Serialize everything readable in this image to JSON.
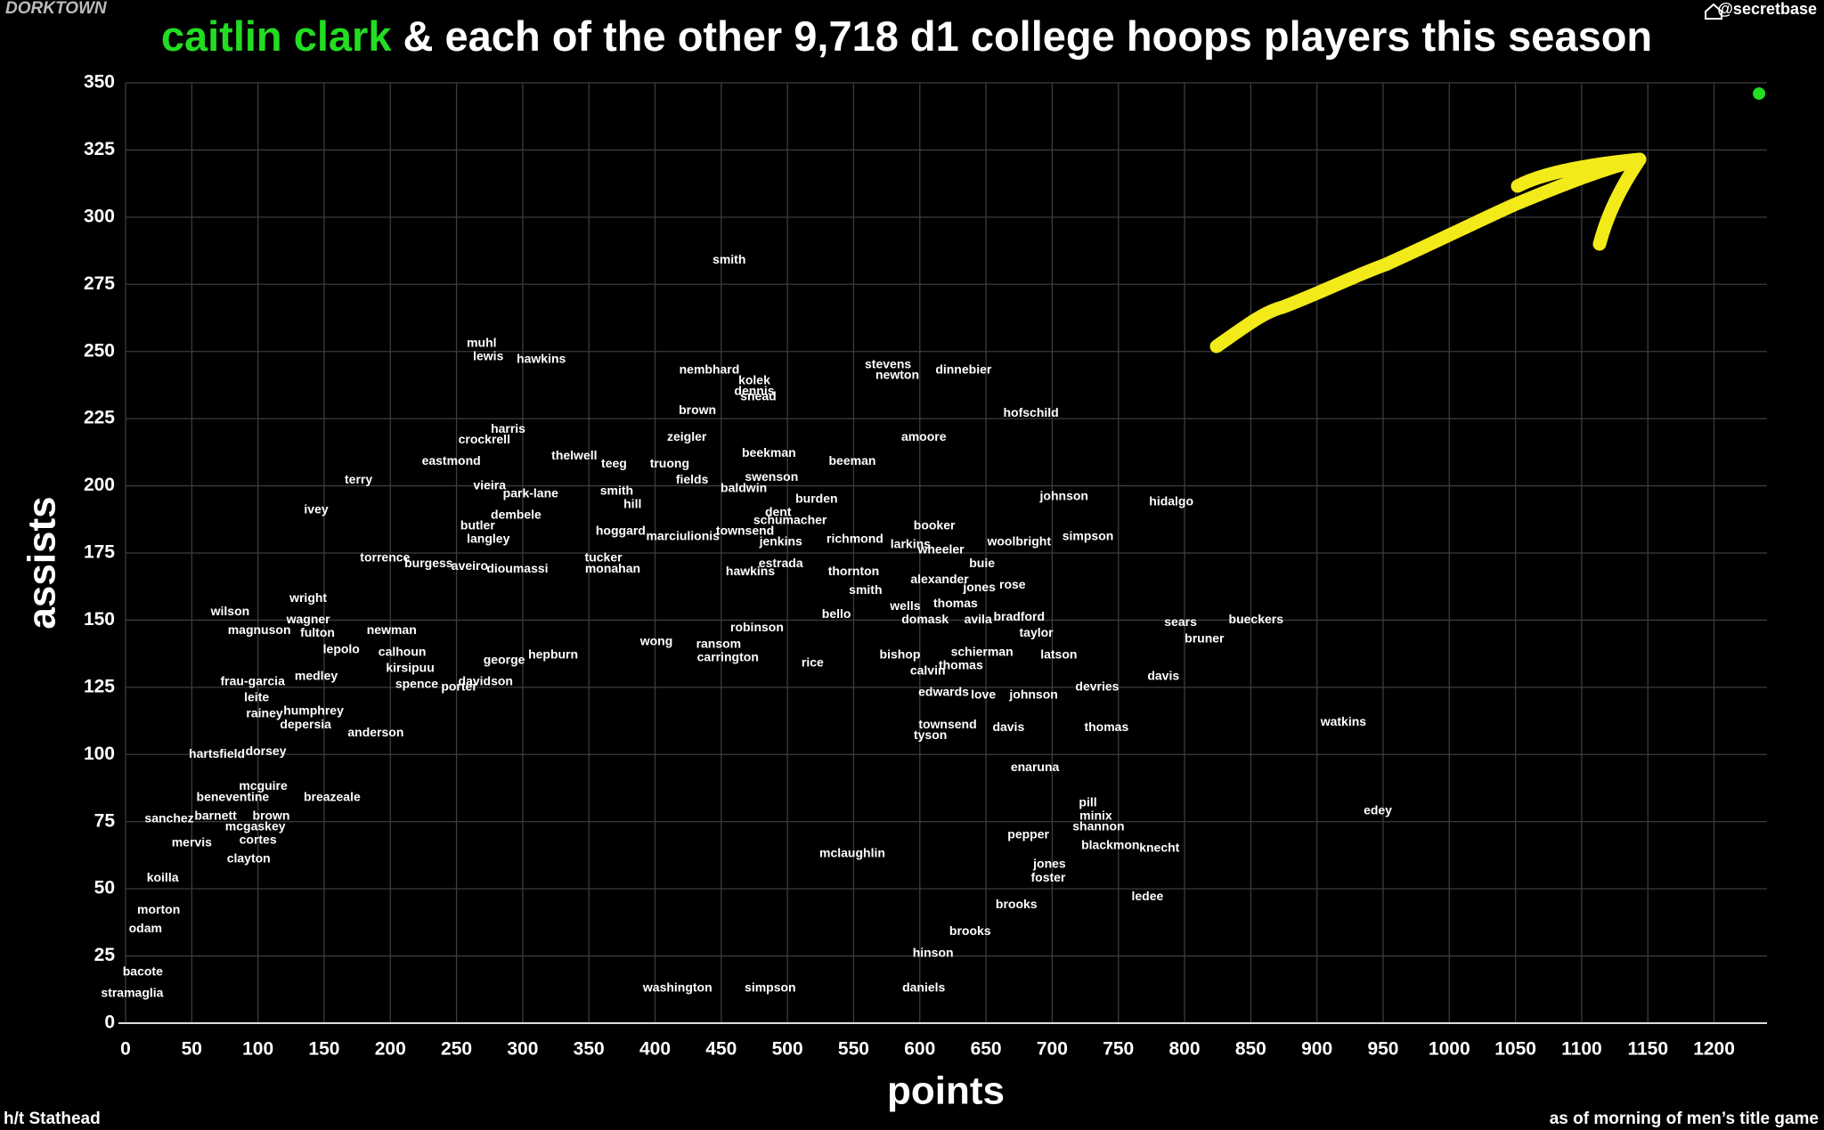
{
  "brand": "DORKTOWN",
  "handle": "@secretbase",
  "credit": "h/t Stathead",
  "note": "as of morning of men’s title game",
  "chart_data": {
    "type": "scatter",
    "title_highlight": "caitlin clark",
    "title": "& each of the other 9,718 d1 college hoops players this season",
    "xlabel": "points",
    "ylabel": "assists",
    "xlim": [
      0,
      1240
    ],
    "ylim": [
      0,
      350
    ],
    "xticks": [
      0,
      50,
      100,
      150,
      200,
      250,
      300,
      350,
      400,
      450,
      500,
      550,
      600,
      650,
      700,
      750,
      800,
      850,
      900,
      950,
      1000,
      1050,
      1100,
      1150,
      1200
    ],
    "yticks": [
      0,
      25,
      50,
      75,
      100,
      125,
      150,
      175,
      200,
      225,
      250,
      275,
      300,
      325,
      350
    ],
    "grid": true,
    "series": [
      {
        "color": "#22dd22",
        "x": [
          1234
        ],
        "y": [
          346
        ]
      },
      {
        "color": "#ffffff",
        "labels": [
          "smith",
          "muhl",
          "lewis",
          "hawkins",
          "nembhard",
          "kolek",
          "dennis",
          "snead",
          "stevens",
          "newton",
          "dinnebier",
          "brown",
          "hofschild",
          "harris",
          "crockrell",
          "zeigler",
          "amoore",
          "beekman",
          "beeman",
          "thelwell",
          "eastmond",
          "teeg",
          "truong",
          "terry",
          "vieira",
          "swenson",
          "fields",
          "smith",
          "park-lane",
          "baldwin",
          "burden",
          "johnson",
          "hidalgo",
          "ivey",
          "hill",
          "dembele",
          "dent",
          "schumacher",
          "booker",
          "butler",
          "hoggard",
          "langley",
          "townsend",
          "marciulionis",
          "richmond",
          "jenkins",
          "larkins",
          "woolbright",
          "simpson",
          "wheeler",
          "torrence",
          "tucker",
          "buie",
          "burgess",
          "aveiro",
          "dioumassi",
          "monahan",
          "hawkins",
          "thornton",
          "estrada",
          "alexander",
          "jones",
          "rose",
          "smith",
          "wright",
          "wells",
          "thomas",
          "wilson",
          "bello",
          "bradford",
          "wagner",
          "domask",
          "avila",
          "sears",
          "bueckers",
          "magnuson",
          "fulton",
          "newman",
          "taylor",
          "bruner",
          "wong",
          "ransom",
          "robinson",
          "lepolo",
          "calhoun",
          "george",
          "hepburn",
          "schierman",
          "latson",
          "carrington",
          "bishop",
          "rice",
          "kirsipuu",
          "calvin",
          "thomas",
          "davis",
          "frau-garcia",
          "medley",
          "spence",
          "porter",
          "davidson",
          "devries",
          "edwards",
          "love",
          "johnson",
          "leite",
          "humphrey",
          "rainey",
          "watkins",
          "thomas",
          "davis",
          "townsend",
          "tyson",
          "depersia",
          "anderson",
          "hartsfield",
          "dorsey",
          "enaruna",
          "mcguire",
          "beneventine",
          "breazeale",
          "pill",
          "minix",
          "edey",
          "sanchez",
          "barnett",
          "brown",
          "shannon",
          "pepper",
          "mcgaskey",
          "cortes",
          "blackmon",
          "knecht",
          "mervis",
          "clayton",
          "mclaughlin",
          "jones",
          "foster",
          "koilla",
          "ledee",
          "brooks",
          "brooks",
          "morton",
          "odam",
          "hinson",
          "bacote",
          "washington",
          "simpson",
          "daniels",
          "stramaglia"
        ],
        "x": [
          456,
          269,
          274,
          314,
          441,
          475,
          475,
          478,
          576,
          583,
          633,
          432,
          684,
          289,
          271,
          424,
          603,
          486,
          549,
          339,
          246,
          369,
          411,
          176,
          275,
          488,
          428,
          371,
          306,
          467,
          522,
          709,
          790,
          144,
          383,
          295,
          493,
          502,
          611,
          266,
          374,
          274,
          468,
          421,
          551,
          495,
          593,
          675,
          727,
          616,
          196,
          361,
          647,
          229,
          260,
          296,
          368,
          472,
          550,
          495,
          615,
          645,
          670,
          559,
          138,
          589,
          627,
          79,
          537,
          675,
          138,
          604,
          644,
          797,
          854,
          101,
          145,
          201,
          688,
          815,
          401,
          448,
          477,
          163,
          209,
          286,
          323,
          647,
          705,
          455,
          585,
          519,
          215,
          606,
          631,
          784,
          96,
          144,
          220,
          252,
          272,
          734,
          618,
          648,
          686,
          99,
          142,
          105,
          920,
          741,
          667,
          621,
          608,
          136,
          189,
          69,
          106,
          687,
          104,
          81,
          156,
          727,
          733,
          946,
          33,
          68,
          110,
          735,
          682,
          98,
          100,
          744,
          781,
          50,
          93,
          549,
          698,
          697,
          28,
          772,
          673,
          638,
          25,
          15,
          610,
          13,
          417,
          487,
          603,
          5
        ],
        "y": [
          284,
          253,
          248,
          247,
          243,
          239,
          235,
          233,
          245,
          241,
          243,
          228,
          227,
          221,
          217,
          218,
          218,
          212,
          209,
          211,
          209,
          208,
          208,
          202,
          200,
          203,
          202,
          198,
          197,
          199,
          195,
          196,
          194,
          191,
          193,
          189,
          190,
          187,
          185,
          185,
          183,
          180,
          183,
          181,
          180,
          179,
          178,
          179,
          181,
          176,
          173,
          173,
          171,
          171,
          170,
          169,
          169,
          168,
          168,
          171,
          165,
          162,
          163,
          161,
          158,
          155,
          156,
          153,
          152,
          151,
          150,
          150,
          150,
          149,
          150,
          146,
          145,
          146,
          145,
          143,
          142,
          141,
          147,
          139,
          138,
          135,
          137,
          138,
          137,
          136,
          137,
          134,
          132,
          131,
          133,
          129,
          127,
          129,
          126,
          125,
          127,
          125,
          123,
          122,
          122,
          121,
          116,
          115,
          112,
          110,
          110,
          111,
          107,
          111,
          108,
          100,
          101,
          95,
          88,
          84,
          84,
          82,
          77,
          79,
          76,
          77,
          77,
          73,
          70,
          73,
          68,
          66,
          65,
          67,
          61,
          63,
          59,
          54,
          54,
          47,
          44,
          34,
          42,
          35,
          26,
          19,
          13,
          13,
          13,
          11
        ]
      }
    ]
  }
}
